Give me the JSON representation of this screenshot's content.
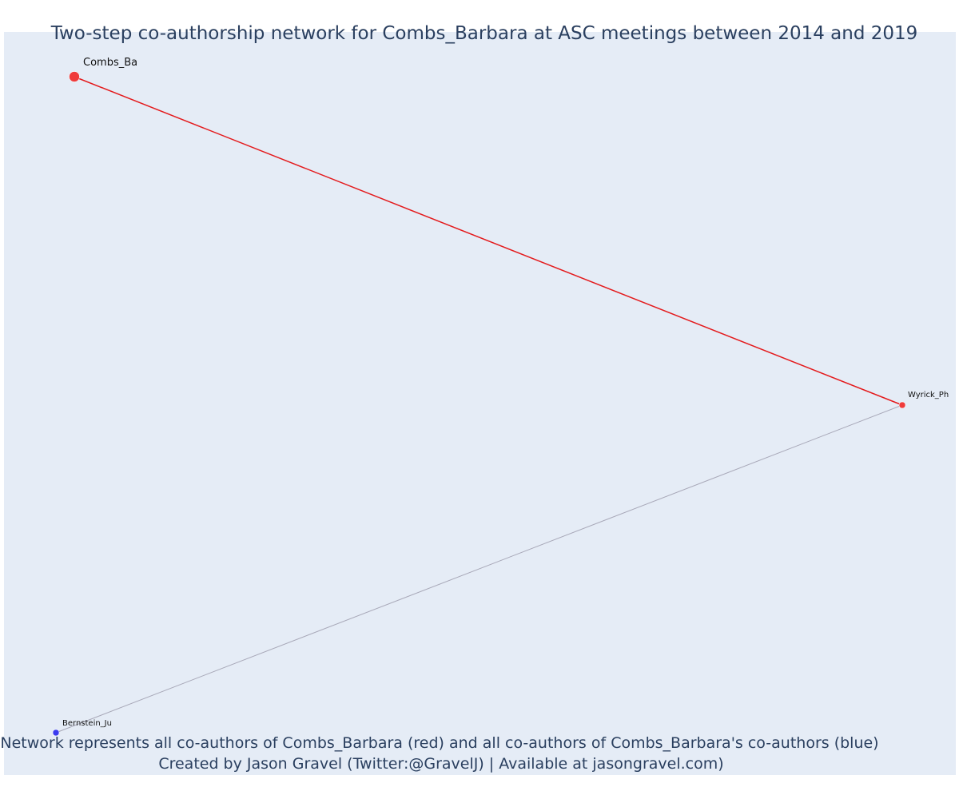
{
  "title": "Two-step co-authorship network for Combs_Barbara at ASC meetings between 2014 and 2019",
  "caption": {
    "line1": "Network represents all co-authors of Combs_Barbara (red) and all co-authors of Combs_Barbara's co-authors (blue)",
    "line2": "Created by Jason Gravel (Twitter:@GravelJ) | Available at jasongravel.com)"
  },
  "colors": {
    "plot_background": "#e5ecf6",
    "red_node": "#ef3b3b",
    "blue_node": "#3b3bef",
    "red_edge": "#e41a1c",
    "grey_edge": "#a8a8b8",
    "text": "#2a3f5f"
  },
  "network": {
    "nodes": [
      {
        "id": "combs",
        "label": "Combs_Ba",
        "group": "red"
      },
      {
        "id": "wyrick",
        "label": "Wyrick_Ph",
        "group": "red"
      },
      {
        "id": "bernstein",
        "label": "Bernstein_Ju",
        "group": "blue"
      }
    ],
    "edges": [
      {
        "source": "combs",
        "target": "wyrick",
        "group": "red"
      },
      {
        "source": "wyrick",
        "target": "bernstein",
        "group": "grey"
      }
    ]
  }
}
